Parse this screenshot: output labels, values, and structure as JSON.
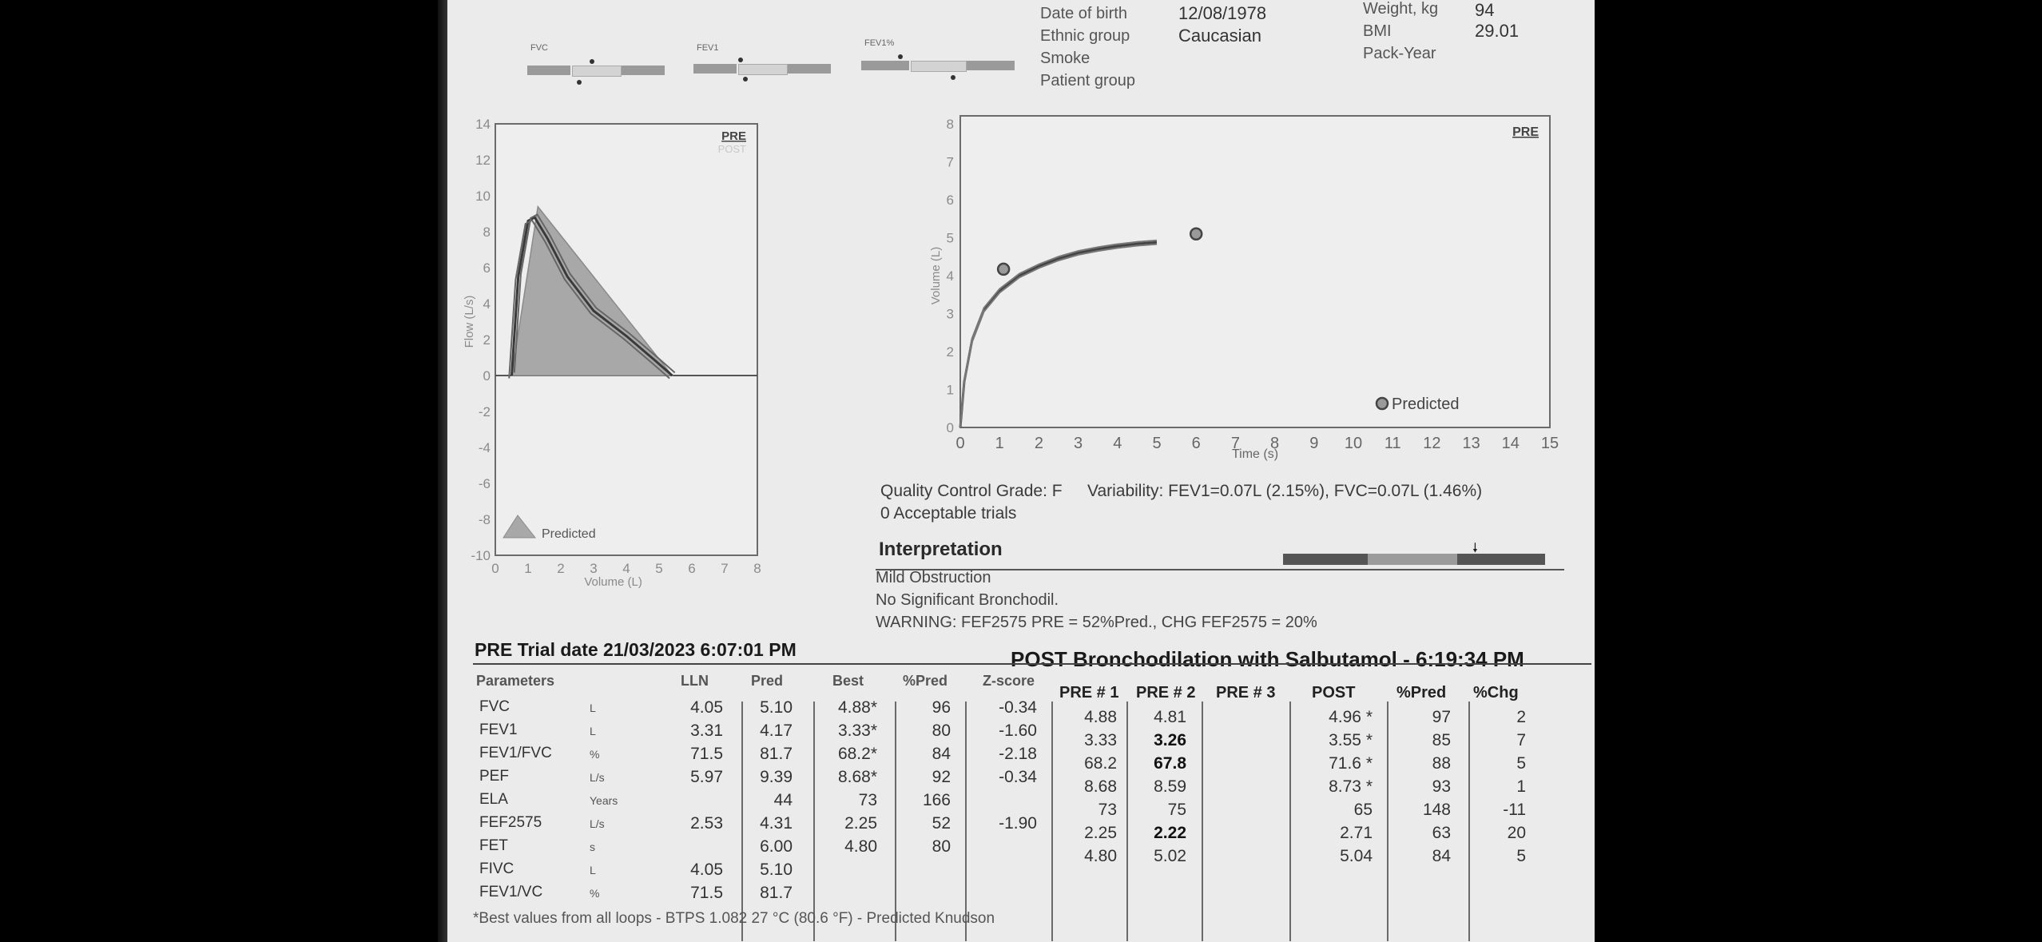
{
  "patient": {
    "dob_label": "Date of birth",
    "dob_value": "12/08/1978",
    "ethnic_label": "Ethnic group",
    "ethnic_value": "Caucasian",
    "smoke_label": "Smoke",
    "group_label": "Patient group",
    "weight_label": "Weight, kg",
    "weight_value": "94",
    "bmi_label": "BMI",
    "bmi_value": "29.01",
    "packyear_label": "Pack-Year"
  },
  "indicators": [
    {
      "label": "FVC"
    },
    {
      "label": "FEV1"
    },
    {
      "label": "FEV1%"
    }
  ],
  "flow_chart": {
    "tag": "PRE",
    "tag2": "POST",
    "x_ticks": [
      "0",
      "1",
      "2",
      "3",
      "4",
      "5",
      "6",
      "7",
      "8"
    ],
    "y_ticks": [
      "14",
      "12",
      "10",
      "8",
      "6",
      "4",
      "2",
      "0",
      "-2",
      "-4",
      "-6",
      "-8",
      "-10"
    ],
    "xlabel": "Volume (L)",
    "ylabel": "Flow (L/s)",
    "legend": "Predicted"
  },
  "vt_chart": {
    "tag": "PRE",
    "x_ticks": [
      "0",
      "1",
      "2",
      "3",
      "4",
      "5",
      "6",
      "7",
      "8",
      "9",
      "10",
      "11",
      "12",
      "13",
      "14",
      "15"
    ],
    "y_ticks": [
      "8",
      "7",
      "6",
      "5",
      "4",
      "3",
      "2",
      "1",
      "0"
    ],
    "xlabel": "Time (s)",
    "ylabel": "Volume (L)",
    "legend": "Predicted"
  },
  "chart_data": [
    {
      "type": "line",
      "title": "",
      "xlabel": "Volume (L)",
      "ylabel": "Flow (L/s)",
      "xlim": [
        0,
        8
      ],
      "ylim": [
        -10,
        14
      ],
      "series": [
        {
          "name": "Predicted",
          "kind": "area",
          "x": [
            0.5,
            1.3,
            5.4
          ],
          "y": [
            0,
            9.39,
            0
          ]
        },
        {
          "x": [
            0.5,
            0.7,
            1.0,
            1.2,
            1.6,
            2.2,
            3.0,
            4.0,
            4.9,
            5.4
          ],
          "y": [
            0,
            5.5,
            8.6,
            8.8,
            7.6,
            5.5,
            3.6,
            2.2,
            0.8,
            0
          ]
        }
      ],
      "grid": false,
      "legend_position": "bottom-left"
    },
    {
      "type": "line",
      "title": "",
      "xlabel": "Time (s)",
      "ylabel": "Volume (L)",
      "xlim": [
        0,
        15
      ],
      "ylim": [
        0,
        8
      ],
      "series": [
        {
          "x": [
            0.0,
            0.1,
            0.3,
            0.6,
            1.0,
            1.5,
            2.0,
            2.5,
            3.0,
            3.5,
            4.0,
            4.5,
            5.0
          ],
          "y": [
            0.0,
            1.2,
            2.3,
            3.1,
            3.6,
            4.0,
            4.25,
            4.45,
            4.6,
            4.7,
            4.78,
            4.84,
            4.88
          ]
        },
        {
          "name": "Predicted",
          "kind": "points",
          "x": [
            1.1,
            6.0
          ],
          "y": [
            4.17,
            5.1
          ]
        }
      ],
      "grid": false,
      "legend_position": "bottom-right"
    }
  ],
  "qc": {
    "grade": "Quality Control Grade: F",
    "variability": "Variability: FEV1=0.07L (2.15%), FVC=0.07L (1.46%)",
    "trials": "0 Acceptable trials"
  },
  "interpretation": {
    "title": "Interpretation",
    "lines": [
      "Mild Obstruction",
      "No Significant Bronchodil.",
      "WARNING: FEF2575 PRE = 52%Pred., CHG FEF2575 = 20%"
    ]
  },
  "trial": {
    "pre_header": "PRE Trial date 21/03/2023   6:07:01 PM",
    "post_header": "POST Bronchodilation with Salbutamol - 6:19:34 PM"
  },
  "table": {
    "headers": [
      "Parameters",
      "LLN",
      "Pred",
      "Best",
      "%Pred",
      "Z-score",
      "PRE # 1",
      "PRE # 2",
      "PRE # 3",
      "POST",
      "%Pred",
      "%Chg"
    ],
    "rows": [
      {
        "name": "FVC",
        "unit": "L",
        "cells": [
          "4.05",
          "5.10",
          "4.88*",
          "96",
          "-0.34",
          "4.88",
          "4.81",
          "",
          "4.96 *",
          "97",
          "2"
        ]
      },
      {
        "name": "FEV1",
        "unit": "L",
        "cells": [
          "3.31",
          "4.17",
          "3.33*",
          "80",
          "-1.60",
          "3.33",
          "3.26",
          "",
          "3.55 *",
          "85",
          "7"
        ]
      },
      {
        "name": "FEV1/FVC",
        "unit": "%",
        "cells": [
          "71.5",
          "81.7",
          "68.2*",
          "84",
          "-2.18",
          "68.2",
          "67.8",
          "",
          "71.6 *",
          "88",
          "5"
        ]
      },
      {
        "name": "PEF",
        "unit": "L/s",
        "cells": [
          "5.97",
          "9.39",
          "8.68*",
          "92",
          "-0.34",
          "8.68",
          "8.59",
          "",
          "8.73 *",
          "93",
          "1"
        ]
      },
      {
        "name": "ELA",
        "unit": "Years",
        "cells": [
          "",
          "44",
          "73",
          "166",
          "",
          "73",
          "75",
          "",
          "65",
          "148",
          "-11"
        ]
      },
      {
        "name": "FEF2575",
        "unit": "L/s",
        "cells": [
          "2.53",
          "4.31",
          "2.25",
          "52",
          "-1.90",
          "2.25",
          "2.22",
          "",
          "2.71",
          "63",
          "20"
        ]
      },
      {
        "name": "FET",
        "unit": "s",
        "cells": [
          "",
          "6.00",
          "4.80",
          "80",
          "",
          "4.80",
          "5.02",
          "",
          "5.04",
          "84",
          "5"
        ]
      },
      {
        "name": "FIVC",
        "unit": "L",
        "cells": [
          "4.05",
          "5.10",
          "",
          "",
          "",
          "",
          "",
          "",
          "",
          "",
          ""
        ]
      },
      {
        "name": "FEV1/VC",
        "unit": "%",
        "cells": [
          "71.5",
          "81.7",
          "",
          "",
          "",
          "",
          "",
          "",
          "",
          "",
          ""
        ]
      }
    ]
  },
  "footnote": "*Best values from all loops - BTPS 1.082  27 °C  (80.6 °F) - Predicted Knudson"
}
